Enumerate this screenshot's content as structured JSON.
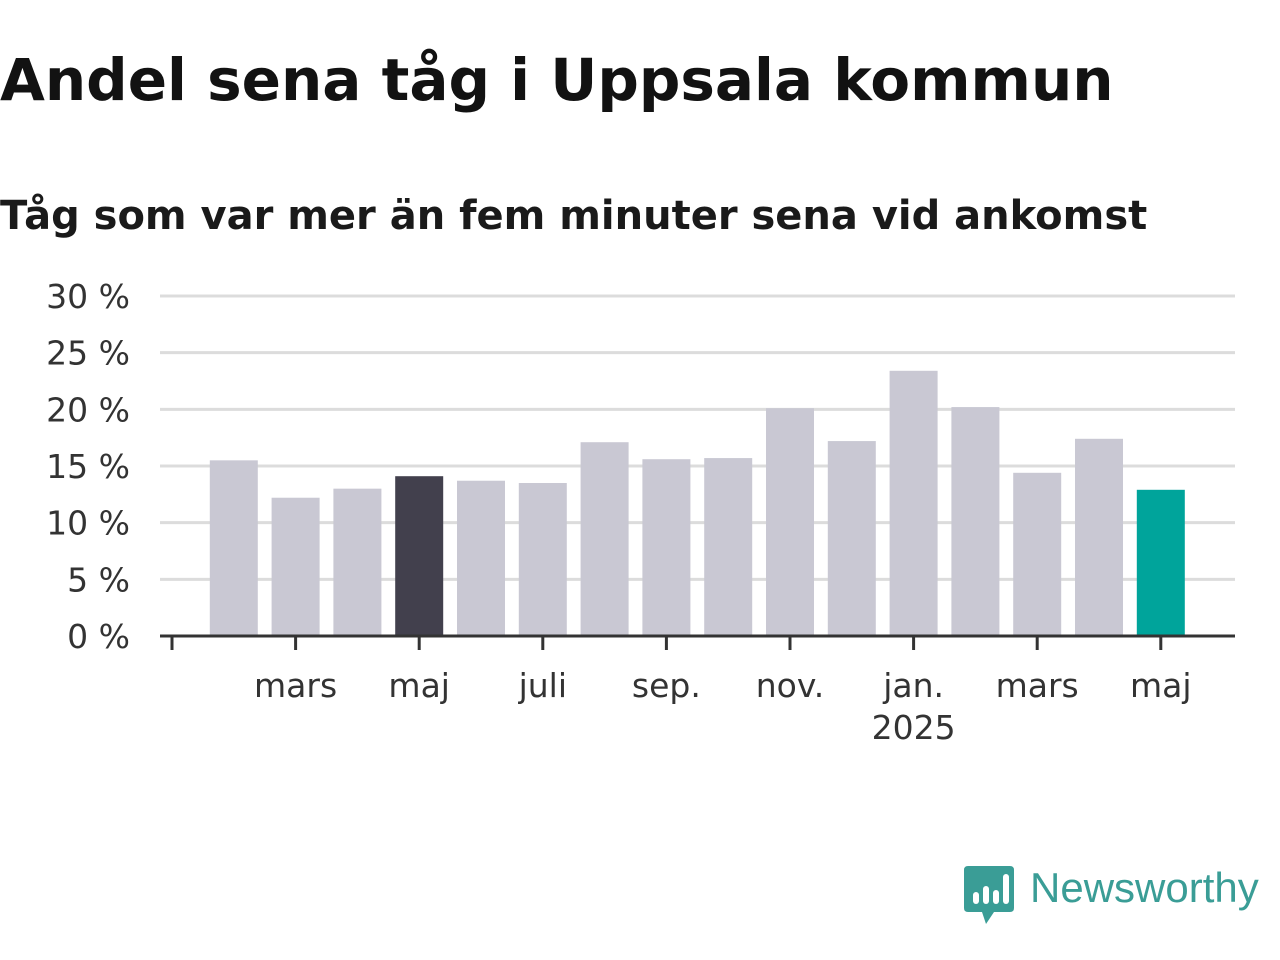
{
  "title": "Andel sena tåg i Uppsala kommun",
  "subtitle": "Tåg som var mer än fem minuter sena vid ankomst",
  "brand": {
    "name": "Newsworthy",
    "color": "#3a9d96",
    "icon": "bar-chart-speech-bubble-icon"
  },
  "colors": {
    "bar": "#c9c8d3",
    "highlight_dark": "#42404d",
    "highlight_latest": "#00a49b",
    "grid": "#dcdcdc",
    "axis": "#333333"
  },
  "chart_data": {
    "type": "bar",
    "values": [
      15.5,
      12.2,
      13.0,
      14.1,
      13.7,
      13.5,
      17.1,
      15.6,
      15.7,
      20.1,
      17.2,
      23.4,
      20.2,
      14.4,
      17.4,
      12.9
    ],
    "highlight": {
      "3": "highlight_dark",
      "15": "highlight_latest"
    },
    "ylim": [
      0,
      30
    ],
    "yticks": [
      0,
      5,
      10,
      15,
      20,
      25,
      30
    ],
    "ytick_suffix": " %",
    "xtick_labels": [
      {
        "at": 2,
        "lines": [
          "mars"
        ]
      },
      {
        "at": 4,
        "lines": [
          "maj"
        ]
      },
      {
        "at": 6,
        "lines": [
          "juli"
        ]
      },
      {
        "at": 8,
        "lines": [
          "sep."
        ]
      },
      {
        "at": 10,
        "lines": [
          "nov."
        ]
      },
      {
        "at": 12,
        "lines": [
          "jan.",
          "2025"
        ]
      },
      {
        "at": 14,
        "lines": [
          "mars"
        ]
      },
      {
        "at": 16,
        "lines": [
          "maj"
        ]
      }
    ],
    "grid": true,
    "legend": "none"
  }
}
